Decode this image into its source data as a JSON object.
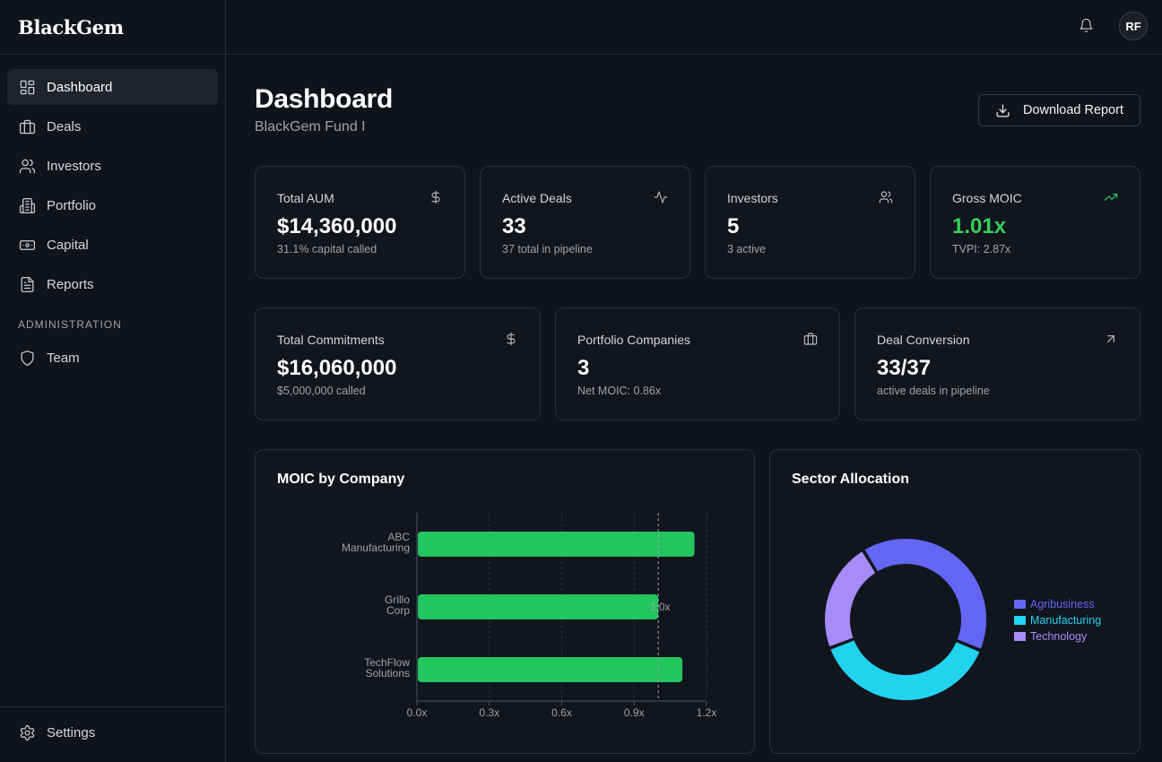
{
  "brand": "BlackGem",
  "nav": [
    {
      "label": "Dashboard",
      "icon": "dashboard-icon",
      "active": true
    },
    {
      "label": "Deals",
      "icon": "briefcase-icon"
    },
    {
      "label": "Investors",
      "icon": "users-icon"
    },
    {
      "label": "Portfolio",
      "icon": "building-icon"
    },
    {
      "label": "Capital",
      "icon": "banknote-icon"
    },
    {
      "label": "Reports",
      "icon": "file-icon"
    }
  ],
  "admin_section": {
    "label": "ADMINISTRATION",
    "items": [
      {
        "label": "Team",
        "icon": "shield-icon"
      }
    ]
  },
  "settings": {
    "label": "Settings",
    "icon": "gear-icon"
  },
  "topbar": {
    "avatar_initials": "RF",
    "bell_icon": "bell-icon"
  },
  "header": {
    "title": "Dashboard",
    "subtitle": "BlackGem Fund I",
    "download_label": "Download Report"
  },
  "stats_row1": [
    {
      "label": "Total AUM",
      "value": "$14,360,000",
      "sub": "31.1% capital called",
      "icon": "dollar-icon"
    },
    {
      "label": "Active Deals",
      "value": "33",
      "sub": "37 total in pipeline",
      "icon": "activity-icon"
    },
    {
      "label": "Investors",
      "value": "5",
      "sub": "3 active",
      "icon": "users-icon"
    },
    {
      "label": "Gross MOIC",
      "value": "1.01x",
      "sub": "TVPI: 2.87x",
      "icon": "trending-up-icon",
      "accent": "#34d058"
    }
  ],
  "stats_row2": [
    {
      "label": "Total Commitments",
      "value": "$16,060,000",
      "sub": "$5,000,000 called",
      "icon": "dollar-icon"
    },
    {
      "label": "Portfolio Companies",
      "value": "3",
      "sub": "Net MOIC: 0.86x",
      "icon": "briefcase-icon"
    },
    {
      "label": "Deal Conversion",
      "value": "33/37",
      "sub": "active deals in pipeline",
      "icon": "arrow-up-right-icon"
    }
  ],
  "moic_chart": {
    "title": "MOIC by Company",
    "reference_label": "1.0x"
  },
  "sector_chart": {
    "title": "Sector Allocation"
  },
  "chart_data": [
    {
      "type": "bar",
      "orientation": "horizontal",
      "title": "MOIC by Company",
      "categories": [
        "ABC Manufacturing",
        "Grillo Corp",
        "TechFlow Solutions"
      ],
      "category_lines": [
        [
          "ABC",
          "Manufacturing"
        ],
        [
          "Grillo",
          "Corp"
        ],
        [
          "TechFlow",
          "Solutions"
        ]
      ],
      "values": [
        1.15,
        1.0,
        1.1
      ],
      "xlim": [
        0,
        1.2
      ],
      "xticks": [
        "0.0x",
        "0.3x",
        "0.6x",
        "0.9x",
        "1.2x"
      ],
      "xtick_values": [
        0,
        0.3,
        0.6,
        0.9,
        1.2
      ],
      "reference_line": 1.0,
      "bar_color": "#22c55e",
      "grid": "vertical dashed"
    },
    {
      "type": "pie",
      "donut": true,
      "title": "Sector Allocation",
      "categories": [
        "Agribusiness",
        "Manufacturing",
        "Technology"
      ],
      "values": [
        40,
        38,
        22
      ],
      "colors": [
        "#6366f1",
        "#22d3ee",
        "#a78bfa"
      ],
      "legend": "right"
    }
  ]
}
